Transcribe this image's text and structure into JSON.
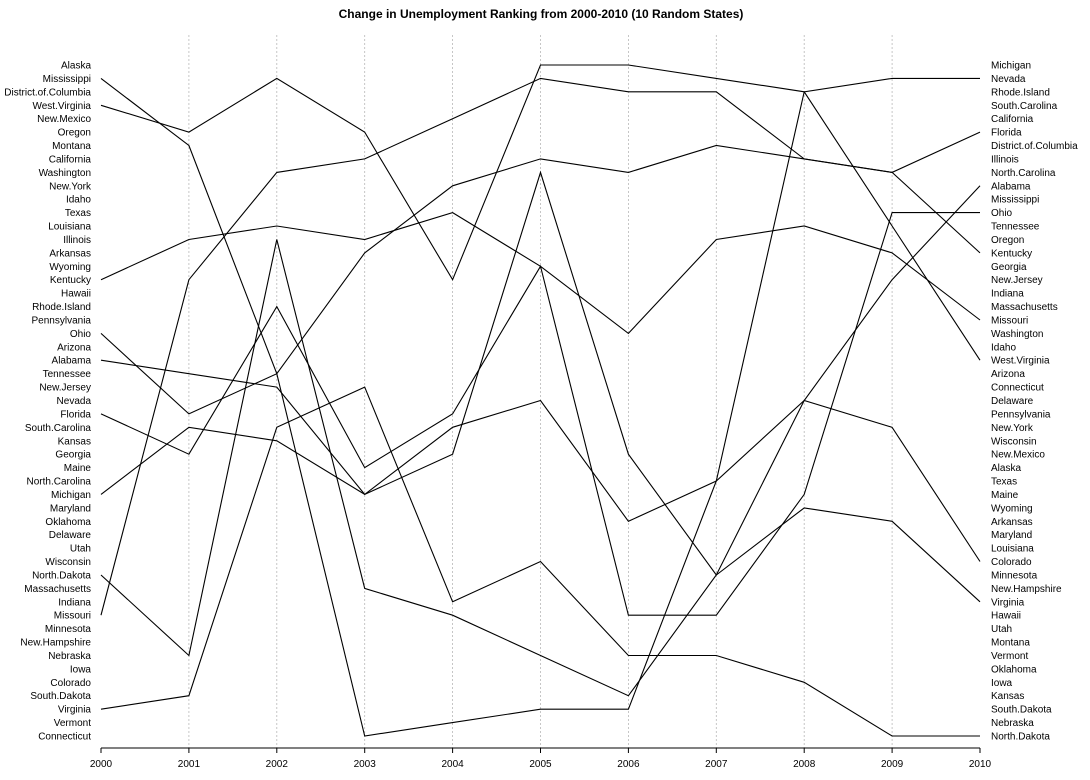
{
  "chart_data": {
    "type": "line",
    "title": "Change in Unemployment Ranking from 2000-2010 (10 Random States)",
    "xlabel": "",
    "ylabel": "",
    "x": [
      "2000",
      "2001",
      "2002",
      "2003",
      "2004",
      "2005",
      "2006",
      "2007",
      "2008",
      "2009",
      "2010"
    ],
    "ylim": [
      1,
      51
    ],
    "y_axis_note": "rank 1 at top, 51 at bottom",
    "grid": "vertical dashed at each year",
    "legend": "none",
    "left_labels": [
      "Alaska",
      "Mississippi",
      "District.of.Columbia",
      "West.Virginia",
      "New.Mexico",
      "Oregon",
      "Montana",
      "California",
      "Washington",
      "New.York",
      "Idaho",
      "Texas",
      "Louisiana",
      "Illinois",
      "Arkansas",
      "Wyoming",
      "Kentucky",
      "Hawaii",
      "Rhode.Island",
      "Pennsylvania",
      "Ohio",
      "Arizona",
      "Alabama",
      "Tennessee",
      "New.Jersey",
      "Nevada",
      "Florida",
      "South.Carolina",
      "Kansas",
      "Georgia",
      "Maine",
      "North.Carolina",
      "Michigan",
      "Maryland",
      "Oklahoma",
      "Delaware",
      "Utah",
      "Wisconsin",
      "North.Dakota",
      "Massachusetts",
      "Indiana",
      "Missouri",
      "Minnesota",
      "New.Hampshire",
      "Nebraska",
      "Iowa",
      "Colorado",
      "South.Dakota",
      "Virginia",
      "Vermont",
      "Connecticut"
    ],
    "right_labels": [
      "Michigan",
      "Nevada",
      "Rhode.Island",
      "South.Carolina",
      "California",
      "Florida",
      "District.of.Columbia",
      "Illinois",
      "North.Carolina",
      "Alabama",
      "Mississippi",
      "Ohio",
      "Tennessee",
      "Oregon",
      "Kentucky",
      "Georgia",
      "New.Jersey",
      "Indiana",
      "Massachusetts",
      "Missouri",
      "Washington",
      "Idaho",
      "West.Virginia",
      "Arizona",
      "Connecticut",
      "Delaware",
      "Pennsylvania",
      "New.York",
      "Wisconsin",
      "New.Mexico",
      "Alaska",
      "Texas",
      "Maine",
      "Wyoming",
      "Arkansas",
      "Maryland",
      "Louisiana",
      "Colorado",
      "Minnesota",
      "New.Hampshire",
      "Virginia",
      "Hawaii",
      "Utah",
      "Montana",
      "Vermont",
      "Oklahoma",
      "Iowa",
      "Kansas",
      "South.Dakota",
      "Nebraska",
      "North.Dakota"
    ],
    "series": [
      {
        "values": [
          2,
          7,
          24,
          51,
          50,
          49,
          49,
          32,
          3,
          2,
          2
        ]
      },
      {
        "values": [
          4,
          6,
          2,
          6,
          17,
          1,
          1,
          2,
          3,
          13,
          23
        ]
      },
      {
        "values": [
          17,
          14,
          13,
          14,
          12,
          16,
          21,
          14,
          13,
          15,
          20
        ]
      },
      {
        "values": [
          21,
          27,
          24,
          15,
          10,
          8,
          9,
          7,
          8,
          9,
          15
        ]
      },
      {
        "values": [
          23,
          24,
          25,
          33,
          28,
          26,
          35,
          32,
          26,
          28,
          38
        ]
      },
      {
        "values": [
          33,
          28,
          29,
          33,
          30,
          9,
          30,
          39,
          34,
          35,
          41
        ]
      },
      {
        "values": [
          42,
          17,
          9,
          8,
          5,
          2,
          3,
          3,
          8,
          9,
          6
        ]
      },
      {
        "values": [
          39,
          45,
          14,
          40,
          42,
          45,
          48,
          39,
          26,
          17,
          10
        ]
      },
      {
        "values": [
          49,
          48,
          28,
          25,
          41,
          38,
          45,
          45,
          47,
          51,
          51
        ]
      },
      {
        "values": [
          27,
          30,
          19,
          31,
          27,
          16,
          42,
          42,
          33,
          12,
          12
        ]
      }
    ]
  }
}
